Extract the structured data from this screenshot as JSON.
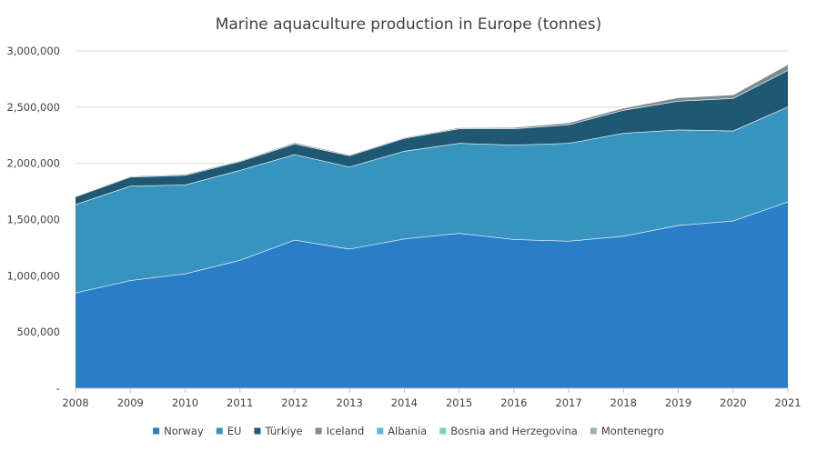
{
  "chart_data": {
    "type": "area",
    "stacked": true,
    "title": "Marine aquaculture production in Europe (tonnes)",
    "xlabel": "",
    "ylabel": "",
    "x": [
      "2008",
      "2009",
      "2010",
      "2011",
      "2012",
      "2013",
      "2014",
      "2015",
      "2016",
      "2017",
      "2018",
      "2019",
      "2020",
      "2021"
    ],
    "ylim": [
      0,
      3000000
    ],
    "yticks": [
      0,
      500000,
      1000000,
      1500000,
      2000000,
      2500000,
      3000000
    ],
    "ytick_labels": [
      "-",
      "500,000",
      "1,000,000",
      "1,500,000",
      "2,000,000",
      "2,500,000",
      "3,000,000"
    ],
    "grid": "horizontal",
    "legend_position": "bottom",
    "series": [
      {
        "name": "Norway",
        "color": "#2a7ec7",
        "values": [
          850000,
          960000,
          1020000,
          1140000,
          1320000,
          1240000,
          1330000,
          1380000,
          1325000,
          1310000,
          1355000,
          1450000,
          1490000,
          1660000
        ]
      },
      {
        "name": "EU",
        "color": "#3694be",
        "values": [
          785000,
          840000,
          790000,
          800000,
          760000,
          730000,
          780000,
          800000,
          840000,
          870000,
          915000,
          850000,
          800000,
          845000
        ]
      },
      {
        "name": "Türkiye",
        "color": "#1f5873",
        "values": [
          70000,
          80000,
          85000,
          78000,
          95000,
          100000,
          115000,
          130000,
          145000,
          165000,
          205000,
          255000,
          290000,
          325000
        ]
      },
      {
        "name": "Iceland",
        "color": "#7d8a8e",
        "values": [
          5000,
          8000,
          10000,
          9000,
          12000,
          9000,
          8000,
          10000,
          12000,
          18000,
          20000,
          32000,
          32000,
          51000
        ]
      },
      {
        "name": "Albania",
        "color": "#57b8d9",
        "values": [
          2000,
          2000,
          2000,
          2000,
          2500,
          2500,
          2500,
          3000,
          3000,
          3000,
          3500,
          3500,
          3500,
          3500
        ]
      },
      {
        "name": "Bosnia and Herzegovina",
        "color": "#7ccfbf",
        "values": [
          100,
          100,
          100,
          100,
          100,
          100,
          100,
          100,
          100,
          100,
          100,
          100,
          100,
          100
        ]
      },
      {
        "name": "Montenegro",
        "color": "#93b3bd",
        "values": [
          300,
          300,
          300,
          300,
          300,
          300,
          300,
          300,
          300,
          300,
          300,
          300,
          300,
          300
        ]
      }
    ]
  }
}
